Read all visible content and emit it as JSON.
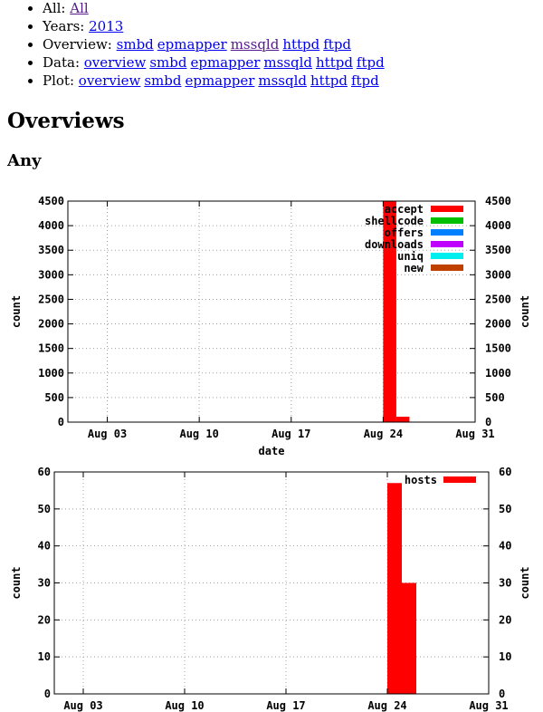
{
  "nav": {
    "all": {
      "label": "All:",
      "links": [
        "All"
      ]
    },
    "years": {
      "label": "Years:",
      "links": [
        "2013"
      ]
    },
    "overview": {
      "label": "Overview:",
      "links": [
        "smbd",
        "epmapper",
        "mssqld",
        "httpd",
        "ftpd"
      ]
    },
    "data": {
      "label": "Data:",
      "links": [
        "overview",
        "smbd",
        "epmapper",
        "mssqld",
        "httpd",
        "ftpd"
      ]
    },
    "plot": {
      "label": "Plot:",
      "links": [
        "overview",
        "smbd",
        "epmapper",
        "mssqld",
        "httpd",
        "ftpd"
      ]
    }
  },
  "page_title": "Overviews",
  "section_title": "Any",
  "chart_data": [
    {
      "type": "bar",
      "xlabel": "date",
      "ylabel": "count",
      "ylim": [
        0,
        4500
      ],
      "yticks": [
        0,
        500,
        1000,
        1500,
        2000,
        2500,
        3000,
        3500,
        4000,
        4500
      ],
      "xlim": [
        "2013-07-31",
        "2013-08-31"
      ],
      "xticks": [
        "2013-08-03",
        "2013-08-10",
        "2013-08-17",
        "2013-08-24",
        "2013-08-31"
      ],
      "xtick_labels": [
        "Aug 03",
        "Aug 10",
        "Aug 17",
        "Aug 24",
        "Aug 31"
      ],
      "grid": true,
      "legend_position": "top-right",
      "series": [
        {
          "name": "accept",
          "color": "#ff0000",
          "bars": [
            {
              "start": "2013-08-24",
              "end": "2013-08-25",
              "value": 4500
            },
            {
              "start": "2013-08-25",
              "end": "2013-08-26",
              "value": 110
            }
          ]
        },
        {
          "name": "shellcode",
          "color": "#00c000",
          "bars": []
        },
        {
          "name": "offers",
          "color": "#0080ff",
          "bars": []
        },
        {
          "name": "downloads",
          "color": "#c000ff",
          "bars": []
        },
        {
          "name": "uniq",
          "color": "#00eeee",
          "bars": []
        },
        {
          "name": "new",
          "color": "#c04000",
          "bars": []
        }
      ]
    },
    {
      "type": "bar",
      "xlabel": "",
      "ylabel": "count",
      "ylim": [
        0,
        60
      ],
      "yticks": [
        0,
        10,
        20,
        30,
        40,
        50,
        60
      ],
      "xlim": [
        "2013-08-01",
        "2013-08-31"
      ],
      "xticks": [
        "2013-08-03",
        "2013-08-10",
        "2013-08-17",
        "2013-08-24",
        "2013-08-31"
      ],
      "xtick_labels": [
        "Aug 03",
        "Aug 10",
        "Aug 17",
        "Aug 24",
        "Aug 31"
      ],
      "grid": true,
      "legend_position": "top-right",
      "series": [
        {
          "name": "hosts",
          "color": "#ff0000",
          "bars": [
            {
              "start": "2013-08-24",
              "end": "2013-08-25",
              "value": 57
            },
            {
              "start": "2013-08-25",
              "end": "2013-08-26",
              "value": 30
            }
          ]
        }
      ]
    }
  ]
}
